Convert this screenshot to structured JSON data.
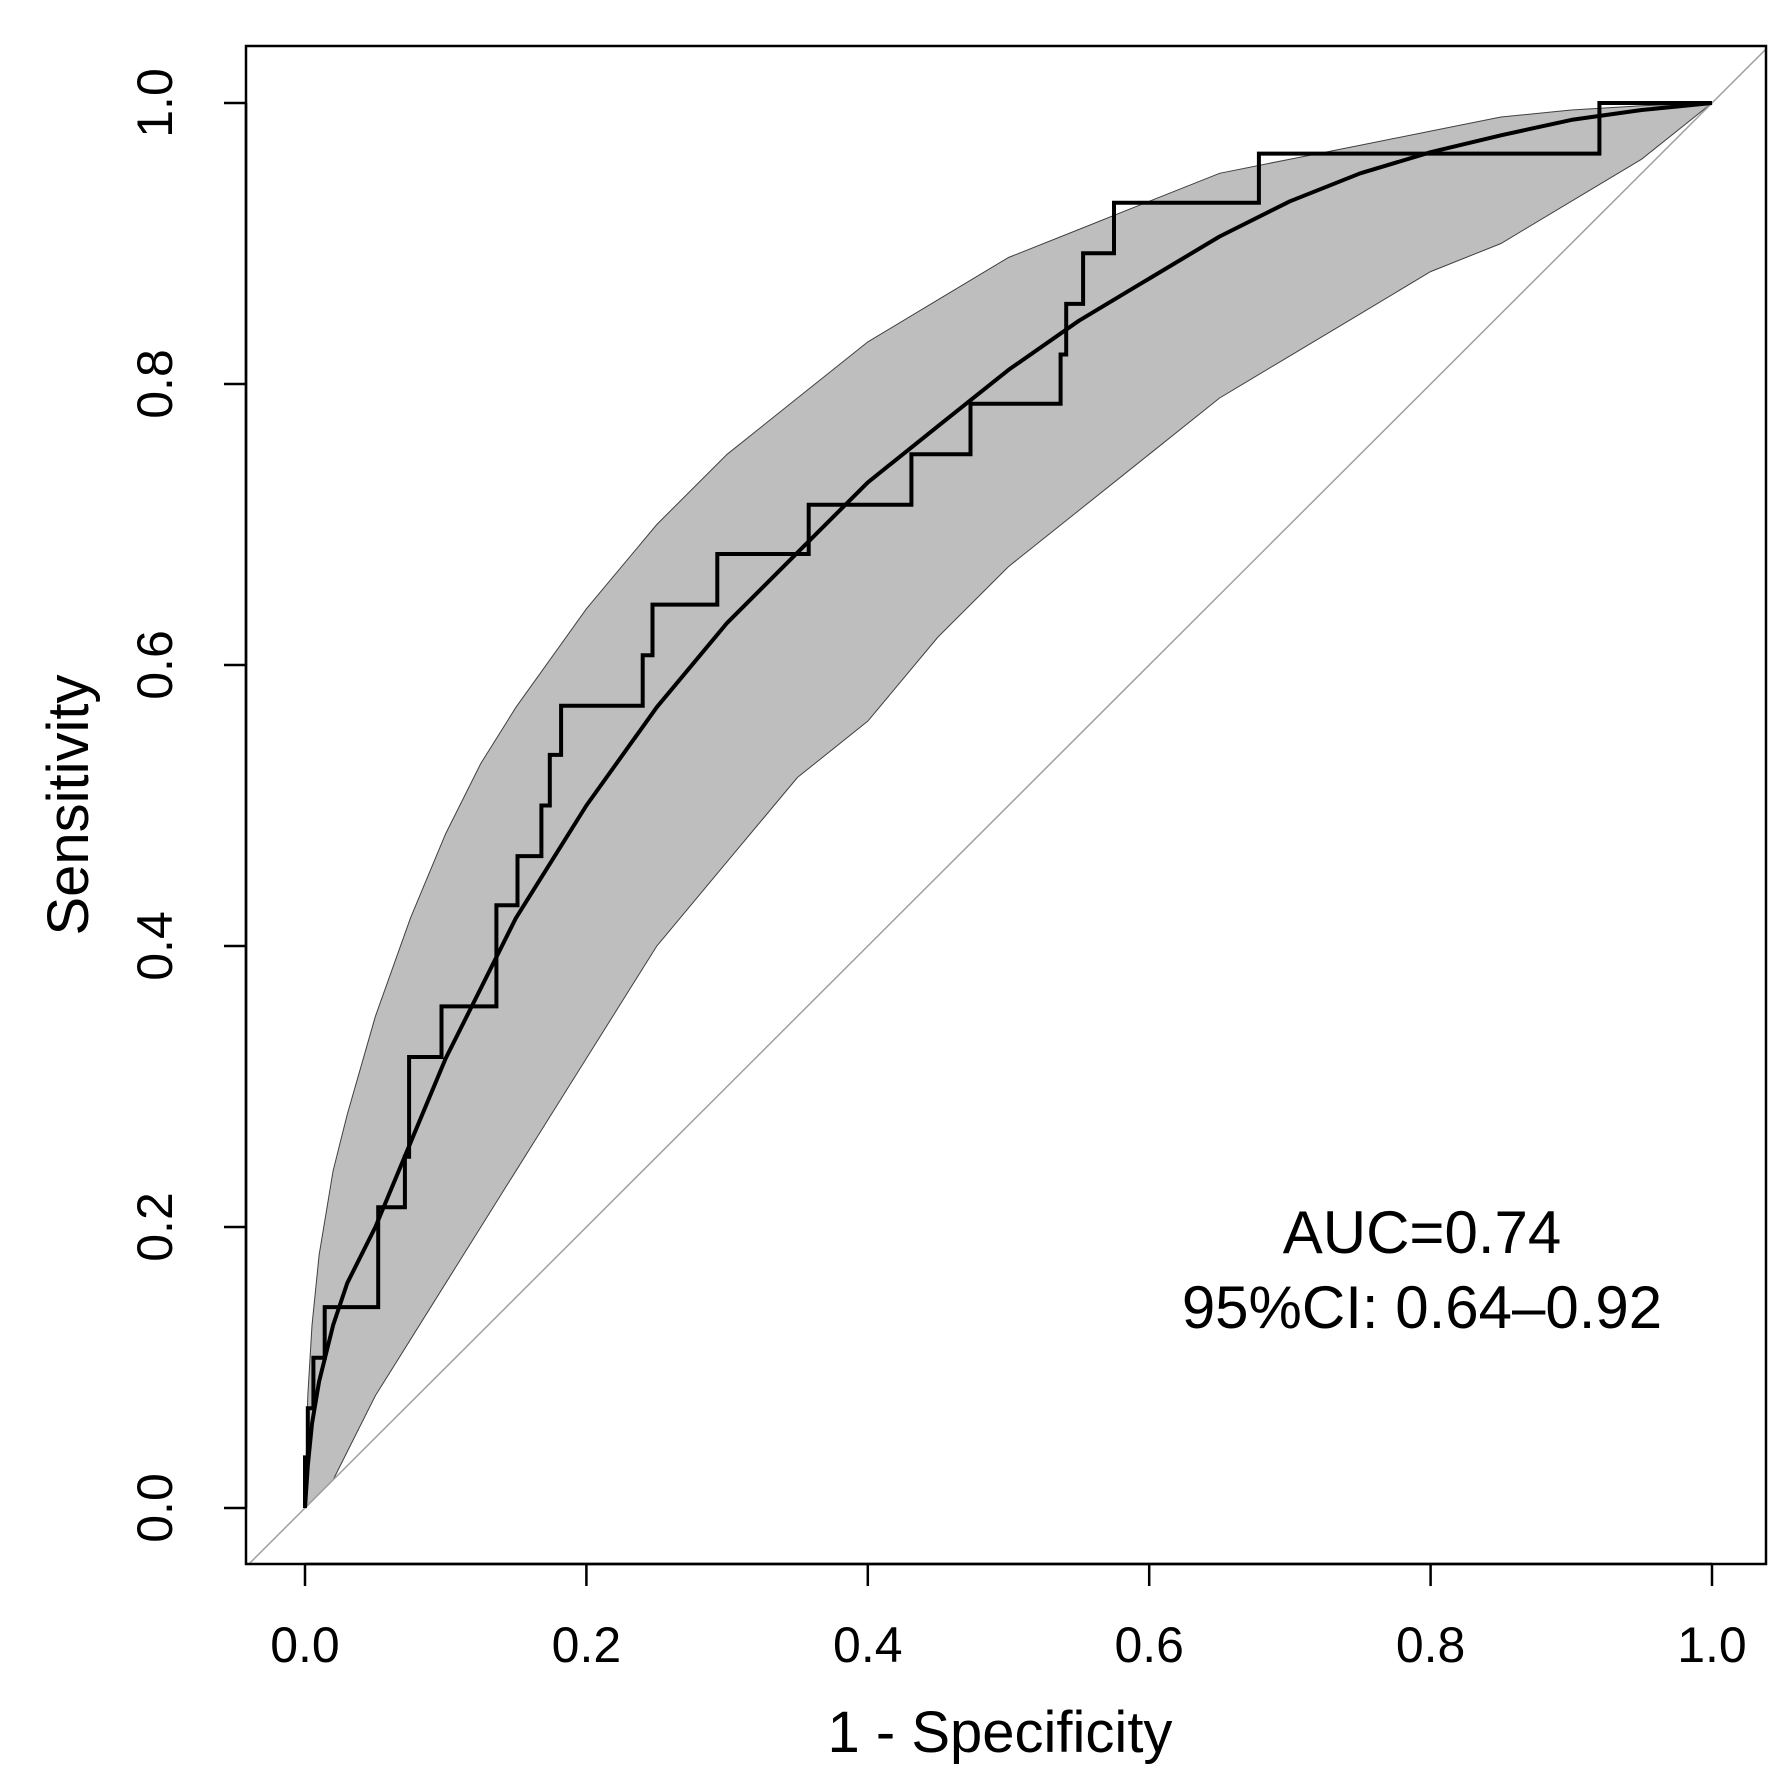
{
  "chart_data": {
    "type": "line",
    "title": "",
    "xlabel": "1 - Specificity",
    "ylabel": "Sensitivity",
    "xlim": [
      0.0,
      1.0
    ],
    "ylim": [
      0.0,
      1.0
    ],
    "x_ticks": [
      "0.0",
      "0.2",
      "0.4",
      "0.6",
      "0.8",
      "1.0"
    ],
    "y_ticks": [
      "0.0",
      "0.2",
      "0.4",
      "0.6",
      "0.8",
      "1.0"
    ],
    "grid": false,
    "legend": "none",
    "annotations": [
      "AUC=0.74",
      "95%CI: 0.64–0.92"
    ],
    "colors": {
      "band_fill": "#bebebe",
      "line": "#000000",
      "reference": "#a0a0a0"
    },
    "series": [
      {
        "name": "Empirical ROC",
        "style": "step",
        "points": [
          [
            0.0,
            0.0
          ],
          [
            0.0,
            0.036
          ],
          [
            0.002,
            0.036
          ],
          [
            0.002,
            0.071
          ],
          [
            0.006,
            0.071
          ],
          [
            0.006,
            0.107
          ],
          [
            0.014,
            0.107
          ],
          [
            0.014,
            0.143
          ],
          [
            0.052,
            0.143
          ],
          [
            0.052,
            0.214
          ],
          [
            0.071,
            0.214
          ],
          [
            0.071,
            0.25
          ],
          [
            0.074,
            0.25
          ],
          [
            0.074,
            0.321
          ],
          [
            0.097,
            0.321
          ],
          [
            0.097,
            0.357
          ],
          [
            0.136,
            0.357
          ],
          [
            0.136,
            0.429
          ],
          [
            0.151,
            0.429
          ],
          [
            0.151,
            0.464
          ],
          [
            0.168,
            0.464
          ],
          [
            0.168,
            0.5
          ],
          [
            0.174,
            0.5
          ],
          [
            0.174,
            0.536
          ],
          [
            0.182,
            0.536
          ],
          [
            0.182,
            0.571
          ],
          [
            0.24,
            0.571
          ],
          [
            0.24,
            0.607
          ],
          [
            0.247,
            0.607
          ],
          [
            0.247,
            0.643
          ],
          [
            0.293,
            0.643
          ],
          [
            0.293,
            0.679
          ],
          [
            0.358,
            0.679
          ],
          [
            0.358,
            0.714
          ],
          [
            0.431,
            0.714
          ],
          [
            0.431,
            0.75
          ],
          [
            0.473,
            0.75
          ],
          [
            0.473,
            0.786
          ],
          [
            0.537,
            0.786
          ],
          [
            0.537,
            0.821
          ],
          [
            0.541,
            0.821
          ],
          [
            0.541,
            0.857
          ],
          [
            0.553,
            0.857
          ],
          [
            0.553,
            0.893
          ],
          [
            0.575,
            0.893
          ],
          [
            0.575,
            0.929
          ],
          [
            0.678,
            0.929
          ],
          [
            0.678,
            0.964
          ],
          [
            0.92,
            0.964
          ],
          [
            0.92,
            1.0
          ],
          [
            1.0,
            1.0
          ]
        ]
      },
      {
        "name": "Smoothed ROC",
        "style": "line",
        "points": [
          [
            0.0,
            0.0
          ],
          [
            0.002,
            0.03
          ],
          [
            0.005,
            0.06
          ],
          [
            0.01,
            0.09
          ],
          [
            0.02,
            0.13
          ],
          [
            0.03,
            0.16
          ],
          [
            0.05,
            0.2
          ],
          [
            0.075,
            0.26
          ],
          [
            0.1,
            0.32
          ],
          [
            0.125,
            0.37
          ],
          [
            0.15,
            0.42
          ],
          [
            0.175,
            0.46
          ],
          [
            0.2,
            0.5
          ],
          [
            0.25,
            0.57
          ],
          [
            0.3,
            0.63
          ],
          [
            0.35,
            0.68
          ],
          [
            0.4,
            0.73
          ],
          [
            0.45,
            0.77
          ],
          [
            0.5,
            0.81
          ],
          [
            0.55,
            0.845
          ],
          [
            0.6,
            0.875
          ],
          [
            0.65,
            0.905
          ],
          [
            0.7,
            0.93
          ],
          [
            0.75,
            0.95
          ],
          [
            0.8,
            0.965
          ],
          [
            0.85,
            0.977
          ],
          [
            0.9,
            0.988
          ],
          [
            0.95,
            0.995
          ],
          [
            1.0,
            1.0
          ]
        ]
      }
    ],
    "confidence_band": {
      "name": "95% CI band",
      "upper": [
        [
          0.0,
          0.0
        ],
        [
          0.002,
          0.08
        ],
        [
          0.005,
          0.13
        ],
        [
          0.01,
          0.18
        ],
        [
          0.02,
          0.24
        ],
        [
          0.03,
          0.28
        ],
        [
          0.05,
          0.35
        ],
        [
          0.075,
          0.42
        ],
        [
          0.1,
          0.48
        ],
        [
          0.125,
          0.53
        ],
        [
          0.15,
          0.57
        ],
        [
          0.2,
          0.64
        ],
        [
          0.25,
          0.7
        ],
        [
          0.3,
          0.75
        ],
        [
          0.35,
          0.79
        ],
        [
          0.4,
          0.83
        ],
        [
          0.45,
          0.86
        ],
        [
          0.5,
          0.89
        ],
        [
          0.55,
          0.91
        ],
        [
          0.6,
          0.93
        ],
        [
          0.65,
          0.95
        ],
        [
          0.7,
          0.96
        ],
        [
          0.75,
          0.97
        ],
        [
          0.8,
          0.98
        ],
        [
          0.85,
          0.99
        ],
        [
          0.9,
          0.995
        ],
        [
          0.95,
          0.998
        ],
        [
          1.0,
          1.0
        ]
      ],
      "lower": [
        [
          0.0,
          0.0
        ],
        [
          0.02,
          0.02
        ],
        [
          0.05,
          0.08
        ],
        [
          0.1,
          0.16
        ],
        [
          0.15,
          0.24
        ],
        [
          0.2,
          0.32
        ],
        [
          0.25,
          0.4
        ],
        [
          0.3,
          0.46
        ],
        [
          0.35,
          0.52
        ],
        [
          0.4,
          0.56
        ],
        [
          0.45,
          0.62
        ],
        [
          0.5,
          0.67
        ],
        [
          0.55,
          0.71
        ],
        [
          0.6,
          0.75
        ],
        [
          0.65,
          0.79
        ],
        [
          0.7,
          0.82
        ],
        [
          0.75,
          0.85
        ],
        [
          0.8,
          0.88
        ],
        [
          0.85,
          0.9
        ],
        [
          0.9,
          0.93
        ],
        [
          0.95,
          0.96
        ],
        [
          1.0,
          1.0
        ]
      ]
    },
    "reference_line": {
      "name": "Chance diagonal",
      "from": [
        0.0,
        0.0
      ],
      "to": [
        1.0,
        1.0
      ]
    }
  }
}
